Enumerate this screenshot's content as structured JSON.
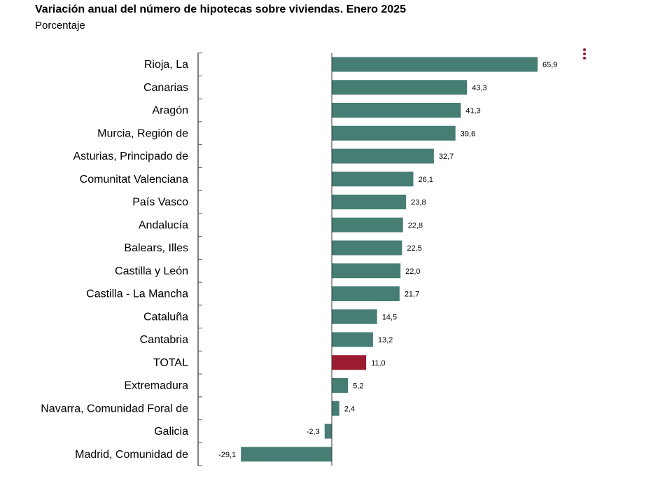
{
  "title": "Variación anual del número de hipotecas sobre viviendas. Enero 2025",
  "subtitle": "Porcentaje",
  "colors": {
    "bar": "#467e74",
    "highlight": "#9b1b30",
    "axis": "#555555",
    "menu": "#9b1b30"
  },
  "menu_icon": "kebab-menu-icon",
  "chart_data": {
    "type": "bar",
    "orientation": "horizontal",
    "title": "Variación anual del número de hipotecas sobre viviendas. Enero 2025",
    "ylabel": "Porcentaje",
    "highlight_category": "TOTAL",
    "categories": [
      "Rioja, La",
      "Canarias",
      "Aragón",
      "Murcia, Región de",
      "Asturias, Principado de",
      "Comunitat Valenciana",
      "País Vasco",
      "Andalucía",
      "Balears, Illes",
      "Castilla y León",
      "Castilla - La Mancha",
      "Cataluña",
      "Cantabria",
      "TOTAL",
      "Extremadura",
      "Navarra, Comunidad Foral de",
      "Galicia",
      "Madrid, Comunidad de"
    ],
    "values": [
      65.9,
      43.3,
      41.3,
      39.6,
      32.7,
      26.1,
      23.8,
      22.8,
      22.5,
      22.0,
      21.7,
      14.5,
      13.2,
      11.0,
      5.2,
      2.4,
      -2.3,
      -29.1
    ],
    "value_labels": [
      "65,9",
      "43,3",
      "41,3",
      "39,6",
      "32,7",
      "26,1",
      "23,8",
      "22,8",
      "22,5",
      "22,0",
      "21,7",
      "14,5",
      "13,2",
      "11,0",
      "5,2",
      "2,4",
      "-2,3",
      "-29,1"
    ],
    "grid": false
  }
}
